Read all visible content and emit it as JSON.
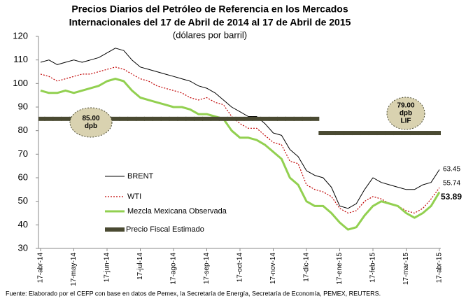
{
  "chart_data": {
    "type": "line",
    "title": [
      "Precios Diarios del Petróleo de Referencia en los Mercados",
      "Internacionales del 17 de Abril de 2014 al 17 de Abril de 2015"
    ],
    "subtitle": "(dólares por barril)",
    "source": "Fuente: Elaborado por el CEFP con base en datos de Pemex,  la Secretaría de Energía, Secretaría de Economía, PEMEX, REUTERS.",
    "categories": [
      "17-abr-14",
      null,
      null,
      null,
      "17-may-14",
      null,
      null,
      null,
      "17-jun-14",
      null,
      null,
      null,
      "17-jul-14",
      null,
      null,
      null,
      "17-ago-14",
      null,
      null,
      null,
      "17-sep-14",
      null,
      null,
      null,
      "17-oct-14",
      null,
      null,
      null,
      "17-nov-14",
      null,
      null,
      null,
      "17-dic-14",
      null,
      null,
      null,
      "17-ene-15",
      null,
      null,
      null,
      "17-feb-15",
      null,
      null,
      null,
      "17-mar-15",
      null,
      null,
      null,
      "17-abr-15"
    ],
    "series": [
      {
        "name": "BRENT",
        "color": "#000000",
        "style": "thin",
        "values": [
          109,
          110,
          108,
          109,
          110,
          109,
          110,
          111,
          113,
          115,
          114,
          110,
          107,
          106,
          105,
          104,
          103,
          102,
          101,
          99,
          98,
          96,
          93,
          90,
          88,
          86,
          86,
          83,
          79,
          78,
          72,
          69,
          63,
          61,
          60,
          56,
          48,
          47,
          49,
          55,
          60,
          58,
          57,
          56,
          55,
          55,
          57,
          58,
          63.45
        ]
      },
      {
        "name": "WTI",
        "color": "#c00000",
        "style": "dotted",
        "values": [
          104,
          103,
          101,
          102,
          103,
          104,
          104,
          105,
          106,
          107,
          106,
          104,
          102,
          101,
          99,
          98,
          97,
          96,
          94,
          93,
          94,
          92,
          91,
          86,
          83,
          81,
          81,
          78,
          75,
          74,
          67,
          66,
          57,
          55,
          54,
          52,
          47,
          45,
          46,
          50,
          52,
          51,
          49,
          48,
          46,
          45,
          47,
          51,
          55.74
        ]
      },
      {
        "name": "Mezcla Mexicana Observada",
        "color": "#92d050",
        "style": "thick",
        "values": [
          97,
          96,
          96,
          97,
          96,
          97,
          98,
          99,
          101,
          102,
          101,
          97,
          94,
          93,
          92,
          91,
          90,
          90,
          89,
          87,
          87,
          86,
          85,
          80,
          77,
          77,
          76,
          74,
          71,
          68,
          60,
          57,
          50,
          48,
          48,
          45,
          41,
          38,
          39,
          44,
          48,
          50,
          49,
          48,
          45,
          43,
          45,
          48,
          53.89
        ]
      },
      {
        "name": "Precio Fiscal Estimado",
        "color": "#4a4a32",
        "style": "bar",
        "values": [
          85,
          85,
          85,
          85,
          85,
          85,
          85,
          85,
          85,
          85,
          85,
          85,
          85,
          85,
          85,
          85,
          85,
          85,
          85,
          85,
          85,
          85,
          85,
          85,
          85,
          85,
          85,
          85,
          85,
          85,
          85,
          85,
          85,
          85,
          79,
          79,
          79,
          79,
          79,
          79,
          79,
          79,
          79,
          79,
          79,
          79,
          79,
          79,
          79
        ]
      }
    ],
    "annotations": [
      {
        "lines": [
          "85.00",
          "dpb"
        ]
      },
      {
        "lines": [
          "79.00",
          "dpb",
          "LIF"
        ]
      }
    ],
    "ylim": [
      30,
      120
    ],
    "yticks": [
      30,
      40,
      50,
      60,
      70,
      80,
      90,
      100,
      110,
      120
    ]
  }
}
